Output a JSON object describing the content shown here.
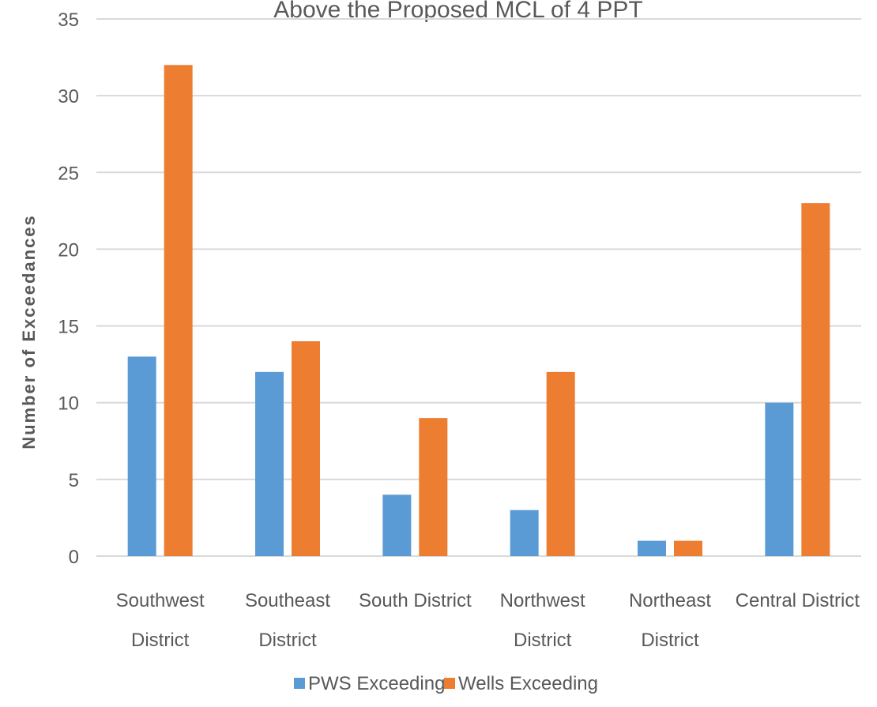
{
  "chart_data": {
    "type": "bar",
    "title": "Above the Proposed MCL of 4 PPT",
    "xlabel": "",
    "ylabel": "Number of Exceedances",
    "ylim": [
      0,
      35
    ],
    "yticks": [
      0,
      5,
      10,
      15,
      20,
      25,
      30,
      35
    ],
    "grid": true,
    "legend_position": "bottom",
    "categories": [
      [
        "Southwest",
        "District"
      ],
      [
        "Southeast",
        "District"
      ],
      [
        "South District"
      ],
      [
        "Northwest",
        "District"
      ],
      [
        "Northeast",
        "District"
      ],
      [
        "Central District"
      ]
    ],
    "series": [
      {
        "name": "PWS Exceeding",
        "color": "#5b9bd5",
        "values": [
          13,
          12,
          4,
          3,
          1,
          10
        ]
      },
      {
        "name": "Wells Exceeding",
        "color": "#ed7d31",
        "values": [
          32,
          14,
          9,
          12,
          1,
          23
        ]
      }
    ]
  }
}
